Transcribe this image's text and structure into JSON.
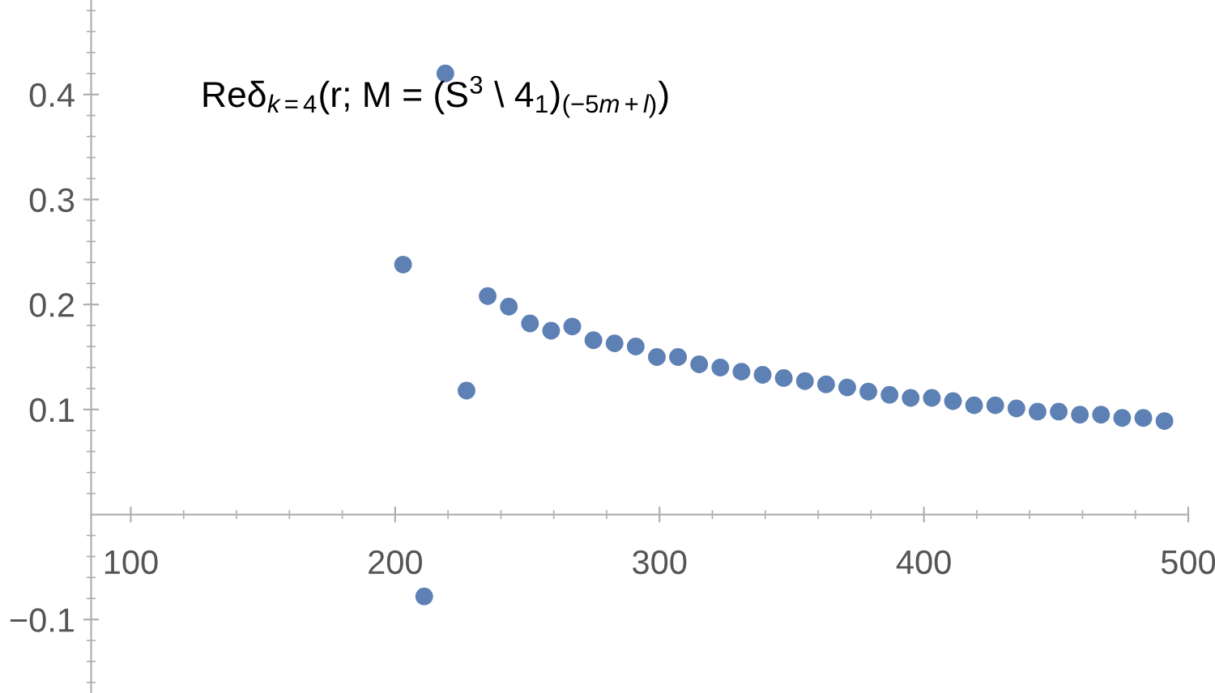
{
  "chart_data": {
    "type": "scatter",
    "annotations": [
      "Reδ$_{k=4}$(r; M = (S$^{3}$ \\ 4$_{1}$)$_{(−5m+l)}$)"
    ],
    "x": [
      203,
      211,
      219,
      227,
      235,
      243,
      251,
      259,
      267,
      275,
      283,
      291,
      299,
      307,
      315,
      323,
      331,
      339,
      347,
      355,
      363,
      371,
      379,
      387,
      395,
      403,
      411,
      419,
      427,
      435,
      443,
      451,
      459,
      467,
      475,
      483,
      491
    ],
    "series": [
      {
        "color": "#5e81b5",
        "values": [
          0.238,
          -0.078,
          0.42,
          0.118,
          0.208,
          0.198,
          0.182,
          0.175,
          0.179,
          0.166,
          0.163,
          0.16,
          0.15,
          0.15,
          0.143,
          0.14,
          0.136,
          0.133,
          0.13,
          0.127,
          0.124,
          0.121,
          0.117,
          0.114,
          0.111,
          0.111,
          0.108,
          0.104,
          0.104,
          0.101,
          0.098,
          0.098,
          0.095,
          0.095,
          0.092,
          0.092,
          0.089
        ]
      }
    ],
    "marker": "circle",
    "xlim": [
      85,
      500
    ],
    "ylim": [
      -0.17,
      0.49
    ],
    "xticks": [
      100,
      {
        "value": 120,
        "label": null
      },
      {
        "value": 140,
        "label": null
      },
      {
        "value": 160,
        "label": null
      },
      {
        "value": 180,
        "label": null
      },
      200,
      {
        "value": 220,
        "label": null
      },
      {
        "value": 240,
        "label": null
      },
      {
        "value": 260,
        "label": null
      },
      {
        "value": 280,
        "label": null
      },
      300,
      {
        "value": 320,
        "label": null
      },
      {
        "value": 340,
        "label": null
      },
      {
        "value": 360,
        "label": null
      },
      {
        "value": 380,
        "label": null
      },
      400,
      {
        "value": 420,
        "label": null
      },
      {
        "value": 440,
        "label": null
      },
      {
        "value": 460,
        "label": null
      },
      {
        "value": 480,
        "label": null
      },
      500
    ],
    "yticks": [
      {
        "value": -0.16,
        "label": null
      },
      {
        "value": -0.14,
        "label": null
      },
      {
        "value": -0.12,
        "label": null
      },
      {
        "value": -0.1,
        "label": "−0.1"
      },
      {
        "value": -0.08,
        "label": null
      },
      {
        "value": -0.06,
        "label": null
      },
      {
        "value": -0.04,
        "label": null
      },
      {
        "value": -0.02,
        "label": null
      },
      {
        "value": 0.02,
        "label": null
      },
      {
        "value": 0.04,
        "label": null
      },
      {
        "value": 0.06,
        "label": null
      },
      {
        "value": 0.08,
        "label": null
      },
      0.1,
      {
        "value": 0.12,
        "label": null
      },
      {
        "value": 0.14,
        "label": null
      },
      {
        "value": 0.16,
        "label": null
      },
      {
        "value": 0.18,
        "label": null
      },
      0.2,
      {
        "value": 0.22,
        "label": null
      },
      {
        "value": 0.24,
        "label": null
      },
      {
        "value": 0.26,
        "label": null
      },
      {
        "value": 0.28,
        "label": null
      },
      0.3,
      {
        "value": 0.32,
        "label": null
      },
      {
        "value": 0.34,
        "label": null
      },
      {
        "value": 0.36,
        "label": null
      },
      {
        "value": 0.38,
        "label": null
      },
      0.4,
      {
        "value": 0.42,
        "label": null
      },
      {
        "value": 0.44,
        "label": null
      },
      {
        "value": 0.46,
        "label": null
      },
      {
        "value": 0.48,
        "label": null
      }
    ],
    "grid": false
  }
}
